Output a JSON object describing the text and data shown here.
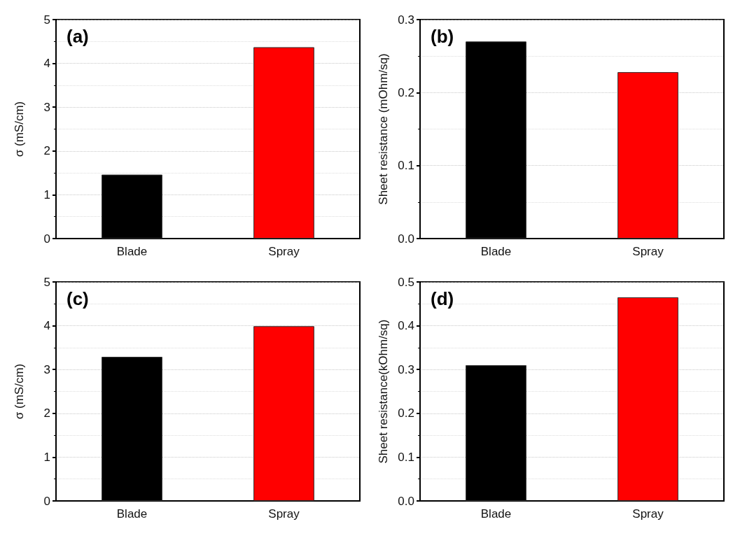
{
  "chart_data": [
    {
      "type": "bar",
      "title": "(a)",
      "ylabel": "σ (mS/cm)",
      "categories": [
        "Blade",
        "Spray"
      ],
      "values": [
        1.46,
        4.37
      ],
      "colors": [
        "#000000",
        "#ff0000"
      ],
      "ylim": [
        0,
        5
      ],
      "yticks": [
        0,
        1,
        2,
        3,
        4,
        5
      ],
      "grid": "y"
    },
    {
      "type": "bar",
      "title": "(b)",
      "ylabel": "Sheet resistance (mOhm/sq)",
      "categories": [
        "Blade",
        "Spray"
      ],
      "values": [
        0.27,
        0.228
      ],
      "colors": [
        "#000000",
        "#ff0000"
      ],
      "ylim": [
        0,
        0.3
      ],
      "yticks": [
        {
          "value": 0,
          "label": "0.0"
        },
        0.1,
        0.2,
        0.3
      ],
      "grid": "y"
    },
    {
      "type": "bar",
      "title": "(c)",
      "ylabel": "σ (mS/cm)",
      "categories": [
        "Blade",
        "Spray"
      ],
      "values": [
        3.29,
        3.99
      ],
      "colors": [
        "#000000",
        "#ff0000"
      ],
      "ylim": [
        0,
        5
      ],
      "yticks": [
        0,
        1,
        2,
        3,
        4,
        5
      ],
      "grid": "y"
    },
    {
      "type": "bar",
      "title": "(d)",
      "ylabel": "Sheet resistance(kOhm/sq)",
      "categories": [
        "Blade",
        "Spray"
      ],
      "values": [
        0.31,
        0.465
      ],
      "colors": [
        "#000000",
        "#ff0000"
      ],
      "ylim": [
        0,
        0.5
      ],
      "yticks": [
        {
          "value": 0,
          "label": "0.0"
        },
        0.1,
        0.2,
        0.3,
        0.4,
        0.5
      ],
      "grid": "y"
    }
  ]
}
